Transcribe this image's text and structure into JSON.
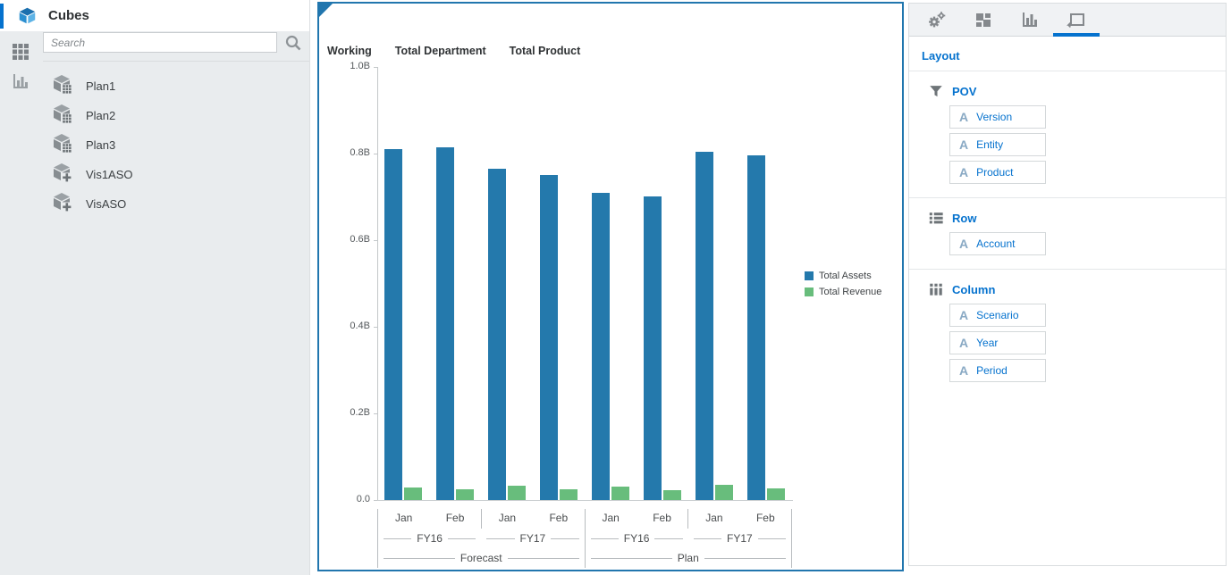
{
  "sidebar": {
    "title": "Cubes",
    "search_placeholder": "Search",
    "items": [
      {
        "label": "Plan1",
        "type": "plan"
      },
      {
        "label": "Plan2",
        "type": "plan"
      },
      {
        "label": "Plan3",
        "type": "plan"
      },
      {
        "label": "Vis1ASO",
        "type": "aso"
      },
      {
        "label": "VisASO",
        "type": "aso"
      }
    ]
  },
  "chart_panel": {
    "pov_headers": [
      "Working",
      "Total Department",
      "Total Product"
    ]
  },
  "chart_data": {
    "type": "bar",
    "title": "",
    "xlabel": "",
    "ylabel": "",
    "ylim": [
      0,
      1.0
    ],
    "unit": "B",
    "grid": false,
    "legend_position": "right-middle",
    "y_ticks": [
      {
        "label": "1.0B",
        "value": 1.0
      },
      {
        "label": "0.8B",
        "value": 0.8
      },
      {
        "label": "0.6B",
        "value": 0.6
      },
      {
        "label": "0.4B",
        "value": 0.4
      },
      {
        "label": "0.2B",
        "value": 0.2
      },
      {
        "label": "0.0",
        "value": 0.0
      }
    ],
    "x_hierarchy": {
      "scenarios": [
        {
          "label": "Forecast",
          "years": [
            {
              "label": "FY16",
              "periods": [
                "Jan",
                "Feb"
              ]
            },
            {
              "label": "FY17",
              "periods": [
                "Jan",
                "Feb"
              ]
            }
          ]
        },
        {
          "label": "Plan",
          "years": [
            {
              "label": "FY16",
              "periods": [
                "Jan",
                "Feb"
              ]
            },
            {
              "label": "FY17",
              "periods": [
                "Jan",
                "Feb"
              ]
            }
          ]
        }
      ]
    },
    "series": [
      {
        "name": "Total Assets",
        "color": "#2479ac",
        "values": [
          0.81,
          0.815,
          0.765,
          0.75,
          0.71,
          0.7,
          0.805,
          0.795
        ]
      },
      {
        "name": "Total Revenue",
        "color": "#68bd7c",
        "values": [
          0.029,
          0.024,
          0.034,
          0.025,
          0.031,
          0.023,
          0.036,
          0.027
        ]
      }
    ]
  },
  "right_panel": {
    "title": "Layout",
    "tabs": [
      {
        "icon": "gears-icon",
        "selected": false
      },
      {
        "icon": "tiles-icon",
        "selected": false
      },
      {
        "icon": "bar-chart-icon",
        "selected": false
      },
      {
        "icon": "layout-frame-icon",
        "selected": true
      }
    ],
    "sections": [
      {
        "icon": "filter-icon",
        "label": "POV",
        "items": [
          "Version",
          "Entity",
          "Product"
        ]
      },
      {
        "icon": "rows-icon",
        "label": "Row",
        "items": [
          "Account"
        ]
      },
      {
        "icon": "columns-icon",
        "label": "Column",
        "items": [
          "Scenario",
          "Year",
          "Period"
        ]
      }
    ]
  },
  "colors": {
    "accent_blue": "#0572ce",
    "bar_blue": "#2479ac",
    "bar_green": "#68bd7c",
    "chart_border_blue": "#2176ae",
    "icon_gray": "#85898d"
  }
}
